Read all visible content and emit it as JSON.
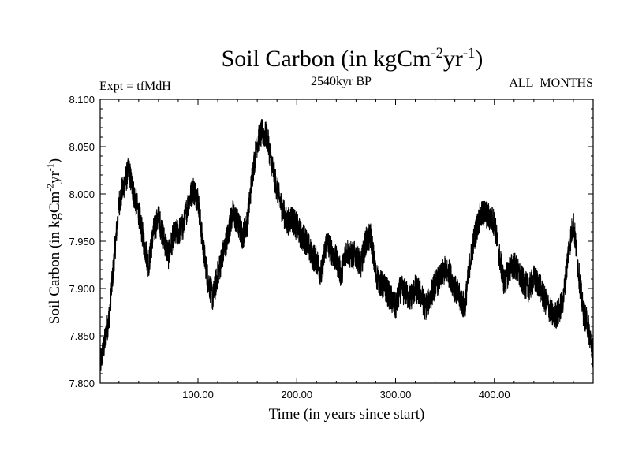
{
  "chart_data": {
    "type": "line",
    "title_main": "Soil Carbon (in kgCm",
    "title_exp1": "-2",
    "title_mid": "yr",
    "title_exp2": "-1",
    "title_end": ")",
    "subtitle": "2540kyr BP",
    "experiment": "Expt = tfMdH",
    "months": "ALL_MONTHS",
    "xlabel": "Time (in years since start)",
    "ylabel_main": "Soil Carbon (in kgCm",
    "ylabel_exp1": "-2",
    "ylabel_mid": "yr",
    "ylabel_exp2": "-1",
    "ylabel_end": ")",
    "xlim": [
      1,
      500
    ],
    "ylim": [
      7.8,
      8.1
    ],
    "x_ticks": [
      100,
      200,
      300,
      400
    ],
    "x_tick_labels": [
      "100.00",
      "200.00",
      "300.00",
      "400.00"
    ],
    "y_ticks": [
      7.8,
      7.85,
      7.9,
      7.95,
      8.0,
      8.05,
      8.1
    ],
    "y_tick_labels": [
      "7.800",
      "7.850",
      "7.900",
      "7.950",
      "8.000",
      "8.050",
      "8.100"
    ],
    "series": [
      {
        "name": "Soil Carbon",
        "x": [
          1,
          5,
          10,
          15,
          20,
          25,
          30,
          35,
          40,
          45,
          50,
          55,
          60,
          65,
          70,
          75,
          80,
          85,
          90,
          95,
          100,
          105,
          110,
          115,
          120,
          125,
          130,
          135,
          140,
          145,
          150,
          155,
          160,
          165,
          170,
          175,
          180,
          185,
          190,
          195,
          200,
          205,
          210,
          215,
          220,
          225,
          230,
          235,
          240,
          245,
          250,
          255,
          260,
          265,
          270,
          275,
          280,
          285,
          290,
          295,
          300,
          305,
          310,
          315,
          320,
          325,
          330,
          335,
          340,
          345,
          350,
          355,
          360,
          365,
          370,
          375,
          380,
          385,
          390,
          395,
          400,
          405,
          410,
          415,
          420,
          425,
          430,
          435,
          440,
          445,
          450,
          455,
          460,
          465,
          470,
          475,
          480,
          485,
          490,
          495,
          500
        ],
        "y": [
          7.82,
          7.84,
          7.87,
          7.93,
          7.99,
          8.01,
          8.025,
          8.0,
          7.98,
          7.95,
          7.925,
          7.96,
          7.975,
          7.955,
          7.935,
          7.955,
          7.96,
          7.965,
          7.99,
          8.005,
          7.995,
          7.945,
          7.91,
          7.89,
          7.915,
          7.935,
          7.955,
          7.98,
          7.97,
          7.955,
          7.97,
          8.02,
          8.055,
          8.065,
          8.06,
          8.03,
          8.005,
          7.985,
          7.97,
          7.975,
          7.965,
          7.955,
          7.95,
          7.935,
          7.93,
          7.915,
          7.95,
          7.94,
          7.93,
          7.915,
          7.94,
          7.935,
          7.935,
          7.925,
          7.95,
          7.955,
          7.915,
          7.905,
          7.9,
          7.89,
          7.88,
          7.9,
          7.895,
          7.89,
          7.9,
          7.895,
          7.88,
          7.89,
          7.905,
          7.91,
          7.92,
          7.915,
          7.9,
          7.89,
          7.88,
          7.925,
          7.955,
          7.975,
          7.98,
          7.975,
          7.97,
          7.935,
          7.905,
          7.92,
          7.925,
          7.915,
          7.905,
          7.9,
          7.91,
          7.905,
          7.89,
          7.88,
          7.87,
          7.875,
          7.89,
          7.94,
          7.97,
          7.92,
          7.875,
          7.86,
          7.83
        ]
      }
    ]
  }
}
